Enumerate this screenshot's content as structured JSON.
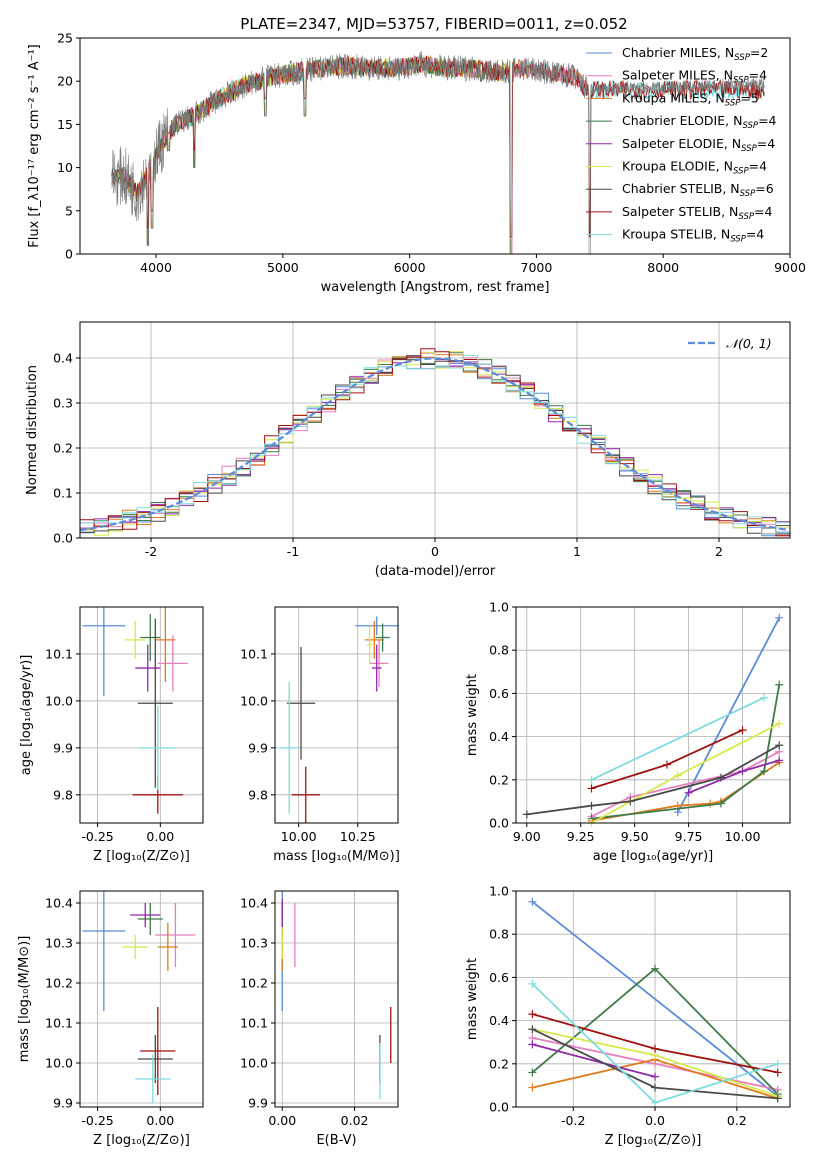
{
  "figure_title": "PLATE=2347, MJD=53757, FIBERID=0011, z=0.052",
  "colors": {
    "chabrier_miles": "#5b8bd9",
    "salpeter_miles": "#e87fbf",
    "kroupa_miles": "#e07b20",
    "chabrier_elodie": "#3f7a48",
    "salpeter_elodie": "#8e2aa8",
    "kroupa_elodie": "#d8e84a",
    "chabrier_stelib": "#4a4a4a",
    "salpeter_stelib": "#a01010",
    "kroupa_stelib": "#80dcdc",
    "normal_curve": "#5b8bd9"
  },
  "chart_data": [
    {
      "id": "spectrum",
      "type": "line",
      "title": "PLATE=2347, MJD=53757, FIBERID=0011, z=0.052",
      "xlabel": "wavelength [Angstrom, rest frame]",
      "ylabel": "Flux [f_λ10⁻¹⁷ erg cm⁻² s⁻¹ A⁻¹]",
      "xlim": [
        3400,
        9000
      ],
      "ylim": [
        0,
        25
      ],
      "xticks": [
        4000,
        5000,
        6000,
        7000,
        8000,
        9000
      ],
      "yticks": [
        0,
        5,
        10,
        15,
        20,
        25
      ],
      "grid": false,
      "legend_position": "upper right",
      "legend": [
        {
          "label": "Chabrier MILES, N",
          "sub": "SSP",
          "suffix": "=2",
          "color": "#5b8bd9"
        },
        {
          "label": "Salpeter MILES, N",
          "sub": "SSP",
          "suffix": "=4",
          "color": "#e87fbf"
        },
        {
          "label": "Kroupa MILES, N",
          "sub": "SSP",
          "suffix": "=5",
          "color": "#e07b20"
        },
        {
          "label": "Chabrier ELODIE, N",
          "sub": "SSP",
          "suffix": "=4",
          "color": "#3f7a48"
        },
        {
          "label": "Salpeter ELODIE, N",
          "sub": "SSP",
          "suffix": "=4",
          "color": "#8e2aa8"
        },
        {
          "label": "Kroupa ELODIE, N",
          "sub": "SSP",
          "suffix": "=4",
          "color": "#d8e84a"
        },
        {
          "label": "Chabrier STELIB, N",
          "sub": "SSP",
          "suffix": "=6",
          "color": "#4a4a4a"
        },
        {
          "label": "Salpeter STELIB, N",
          "sub": "SSP",
          "suffix": "=4",
          "color": "#a01010"
        },
        {
          "label": "Kroupa STELIB, N",
          "sub": "SSP",
          "suffix": "=4",
          "color": "#80dcdc"
        }
      ],
      "data_trend": {
        "x": [
          3650,
          3750,
          3850,
          3950,
          4050,
          4150,
          4300,
          4500,
          4700,
          4900,
          5100,
          5300,
          5500,
          5700,
          5900,
          6100,
          6300,
          6500,
          6700,
          6900,
          7100,
          7300,
          7400
        ],
        "y": [
          9,
          9,
          7,
          10,
          13,
          15,
          16,
          18,
          19.5,
          20.5,
          21,
          21.5,
          21.8,
          21.5,
          21.5,
          22,
          21.5,
          21.5,
          21,
          21.5,
          21,
          20.5,
          19
        ]
      },
      "data_x_range": [
        3650,
        8800
      ],
      "model_x_ranges": {
        "miles": [
          3650,
          7400
        ],
        "elodie": [
          3650,
          6800
        ],
        "stelib": [
          3650,
          8800
        ]
      },
      "spectral_dips": [
        {
          "x": 3934,
          "y": 1
        },
        {
          "x": 3969,
          "y": 3
        },
        {
          "x": 4101,
          "y": 12
        },
        {
          "x": 4300,
          "y": 10
        },
        {
          "x": 4861,
          "y": 16
        },
        {
          "x": 5175,
          "y": 16
        },
        {
          "x": 6563,
          "y": 20
        },
        {
          "x": 6800,
          "y": 0
        },
        {
          "x": 7420,
          "y": 0
        }
      ]
    },
    {
      "id": "residual_hist",
      "type": "line",
      "xlabel": "(data-model)/error",
      "ylabel": "Normed distribution",
      "xlim": [
        -2.5,
        2.5
      ],
      "ylim": [
        0,
        0.48
      ],
      "xticks": [
        -2,
        -1,
        0,
        1,
        2
      ],
      "yticks": [
        0.0,
        0.1,
        0.2,
        0.3,
        0.4
      ],
      "grid": true,
      "legend_position": "upper right",
      "legend": [
        {
          "label": "𝒩(0, 1)",
          "color": "#5b8bd9",
          "style": "dashed"
        }
      ],
      "bin_width": 0.1
    },
    {
      "id": "age_vs_Z",
      "type": "scatter",
      "xlabel": "Z [log₁₀(Z/Z⊙)]",
      "ylabel": "age  [log₁₀(age/yr)]",
      "xlim": [
        -0.32,
        0.17
      ],
      "ylim": [
        9.74,
        10.2
      ],
      "xticks": [
        -0.25,
        0.0
      ],
      "yticks": [
        9.8,
        9.9,
        10.0,
        10.1
      ],
      "grid": true,
      "points": [
        {
          "model": "Chabrier MILES",
          "x": -0.225,
          "y": 10.16,
          "xerr": 0.085,
          "yerr": 0.15,
          "color": "#5b8bd9"
        },
        {
          "model": "Salpeter MILES",
          "x": 0.05,
          "y": 10.08,
          "xerr": 0.06,
          "yerr": 0.06,
          "color": "#e87fbf"
        },
        {
          "model": "Kroupa MILES",
          "x": 0.02,
          "y": 10.13,
          "xerr": 0.04,
          "yerr": 0.09,
          "color": "#e07b20"
        },
        {
          "model": "Chabrier ELODIE",
          "x": -0.04,
          "y": 10.135,
          "xerr": 0.04,
          "yerr": 0.05,
          "color": "#3f7a48"
        },
        {
          "model": "Salpeter ELODIE",
          "x": -0.05,
          "y": 10.07,
          "xerr": 0.05,
          "yerr": 0.05,
          "color": "#8e2aa8"
        },
        {
          "model": "Kroupa ELODIE",
          "x": -0.1,
          "y": 10.13,
          "xerr": 0.04,
          "yerr": 0.04,
          "color": "#d8e84a"
        },
        {
          "model": "Chabrier STELIB",
          "x": -0.02,
          "y": 9.995,
          "xerr": 0.07,
          "yerr": 0.18,
          "color": "#4a4a4a"
        },
        {
          "model": "Salpeter STELIB",
          "x": -0.01,
          "y": 9.8,
          "xerr": 0.1,
          "yerr": 0.04,
          "color": "#a01010"
        },
        {
          "model": "Kroupa STELIB",
          "x": -0.01,
          "y": 9.9,
          "xerr": 0.07,
          "yerr": 0.09,
          "color": "#80dcdc"
        }
      ]
    },
    {
      "id": "age_vs_mass",
      "type": "scatter",
      "xlabel": "mass [log₁₀(M/M⊙)]",
      "ylabel": "",
      "xlim": [
        9.9,
        10.42
      ],
      "ylim": [
        9.74,
        10.2
      ],
      "xticks": [
        10.0,
        10.25
      ],
      "yticks": [
        9.8,
        9.9,
        10.0,
        10.1
      ],
      "grid": true,
      "points": [
        {
          "model": "Chabrier MILES",
          "x": 10.33,
          "y": 10.16,
          "xerr": 0.09,
          "yerr": 0.02,
          "color": "#5b8bd9"
        },
        {
          "model": "Salpeter MILES",
          "x": 10.34,
          "y": 10.08,
          "xerr": 0.04,
          "yerr": 0.05,
          "color": "#e87fbf"
        },
        {
          "model": "Kroupa MILES",
          "x": 10.32,
          "y": 10.13,
          "xerr": 0.04,
          "yerr": 0.04,
          "color": "#e07b20"
        },
        {
          "model": "Chabrier ELODIE",
          "x": 10.355,
          "y": 10.135,
          "xerr": 0.03,
          "yerr": 0.03,
          "color": "#3f7a48"
        },
        {
          "model": "Salpeter ELODIE",
          "x": 10.33,
          "y": 10.07,
          "xerr": 0.02,
          "yerr": 0.05,
          "color": "#8e2aa8"
        },
        {
          "model": "Kroupa ELODIE",
          "x": 10.3,
          "y": 10.12,
          "xerr": 0.01,
          "yerr": 0.04,
          "color": "#d8e84a"
        },
        {
          "model": "Chabrier STELIB",
          "x": 10.01,
          "y": 9.995,
          "xerr": 0.06,
          "yerr": 0.12,
          "color": "#4a4a4a"
        },
        {
          "model": "Salpeter STELIB",
          "x": 10.03,
          "y": 9.8,
          "xerr": 0.06,
          "yerr": 0.06,
          "color": "#a01010"
        },
        {
          "model": "Kroupa STELIB",
          "x": 9.96,
          "y": 9.9,
          "xerr": 0.04,
          "yerr": 0.14,
          "color": "#80dcdc"
        }
      ]
    },
    {
      "id": "mass_weight_vs_age",
      "type": "line",
      "xlabel": "age  [log₁₀(age/yr)]",
      "ylabel": "mass weight",
      "xlim": [
        8.95,
        10.22
      ],
      "ylim": [
        0,
        1.0
      ],
      "xticks": [
        9.0,
        9.25,
        9.5,
        9.75,
        10.0
      ],
      "yticks": [
        0.0,
        0.2,
        0.4,
        0.6,
        0.8,
        1.0
      ],
      "grid": true,
      "series": [
        {
          "name": "Chabrier MILES",
          "color": "#5b8bd9",
          "x": [
            9.7,
            10.17
          ],
          "y": [
            0.05,
            0.95
          ]
        },
        {
          "name": "Salpeter MILES",
          "color": "#e87fbf",
          "x": [
            9.3,
            9.48,
            10.0,
            10.17
          ],
          "y": [
            0.03,
            0.12,
            0.24,
            0.33
          ]
        },
        {
          "name": "Kroupa MILES",
          "color": "#e07b20",
          "x": [
            9.3,
            9.7,
            9.85,
            9.9,
            10.17
          ],
          "y": [
            0.01,
            0.08,
            0.09,
            0.1,
            0.28
          ]
        },
        {
          "name": "Chabrier ELODIE",
          "color": "#3f7a48",
          "x": [
            9.3,
            9.9,
            10.1,
            10.17
          ],
          "y": [
            0.02,
            0.09,
            0.24,
            0.64
          ]
        },
        {
          "name": "Salpeter ELODIE",
          "color": "#8e2aa8",
          "x": [
            9.75,
            10.0,
            10.17
          ],
          "y": [
            0.14,
            0.24,
            0.29
          ]
        },
        {
          "name": "Kroupa ELODIE",
          "color": "#d8e84a",
          "x": [
            9.3,
            9.7,
            10.17
          ],
          "y": [
            0.0,
            0.22,
            0.46
          ]
        },
        {
          "name": "Chabrier STELIB",
          "color": "#4a4a4a",
          "x": [
            9.0,
            9.3,
            9.48,
            9.9,
            10.17
          ],
          "y": [
            0.04,
            0.08,
            0.1,
            0.21,
            0.36
          ]
        },
        {
          "name": "Salpeter STELIB",
          "color": "#a01010",
          "x": [
            9.3,
            9.65,
            10.0
          ],
          "y": [
            0.16,
            0.27,
            0.43
          ]
        },
        {
          "name": "Kroupa STELIB",
          "color": "#80dcdc",
          "x": [
            9.3,
            10.1
          ],
          "y": [
            0.2,
            0.58
          ]
        }
      ]
    },
    {
      "id": "mass_vs_Z",
      "type": "scatter",
      "xlabel": "Z [log₁₀(Z/Z⊙)]",
      "ylabel": "mass [log₁₀(M/M⊙)]",
      "xlim": [
        -0.32,
        0.17
      ],
      "ylim": [
        9.89,
        10.43
      ],
      "xticks": [
        -0.25,
        0.0
      ],
      "yticks": [
        9.9,
        10.0,
        10.1,
        10.2,
        10.3,
        10.4
      ],
      "grid": true,
      "points": [
        {
          "model": "Chabrier MILES",
          "x": -0.225,
          "y": 10.33,
          "xerr": 0.085,
          "yerr": 0.2,
          "color": "#5b8bd9"
        },
        {
          "model": "Salpeter MILES",
          "x": 0.06,
          "y": 10.32,
          "xerr": 0.08,
          "yerr": 0.08,
          "color": "#e87fbf"
        },
        {
          "model": "Kroupa MILES",
          "x": 0.03,
          "y": 10.29,
          "xerr": 0.04,
          "yerr": 0.06,
          "color": "#e07b20"
        },
        {
          "model": "Chabrier ELODIE",
          "x": -0.04,
          "y": 10.36,
          "xerr": 0.05,
          "yerr": 0.04,
          "color": "#3f7a48"
        },
        {
          "model": "Salpeter ELODIE",
          "x": -0.06,
          "y": 10.37,
          "xerr": 0.06,
          "yerr": 0.03,
          "color": "#8e2aa8"
        },
        {
          "model": "Kroupa ELODIE",
          "x": -0.1,
          "y": 10.29,
          "xerr": 0.05,
          "yerr": 0.03,
          "color": "#d8e84a"
        },
        {
          "model": "Chabrier STELIB",
          "x": -0.02,
          "y": 10.01,
          "xerr": 0.07,
          "yerr": 0.06,
          "color": "#4a4a4a"
        },
        {
          "model": "Salpeter STELIB",
          "x": -0.01,
          "y": 10.03,
          "xerr": 0.07,
          "yerr": 0.11,
          "color": "#a01010"
        },
        {
          "model": "Kroupa STELIB",
          "x": -0.03,
          "y": 9.96,
          "xerr": 0.07,
          "yerr": 0.06,
          "color": "#80dcdc"
        }
      ]
    },
    {
      "id": "mass_vs_ebv",
      "type": "scatter",
      "xlabel": "E(B-V)",
      "ylabel": "",
      "xlim": [
        -0.002,
        0.032
      ],
      "ylim": [
        9.89,
        10.43
      ],
      "xticks": [
        0.0,
        0.02
      ],
      "yticks": [
        9.9,
        10.0,
        10.1,
        10.2,
        10.3,
        10.4
      ],
      "grid": true,
      "points": [
        {
          "model": "Chabrier MILES",
          "x": 0.0,
          "y": 10.33,
          "xerr": 0,
          "yerr": 0.2,
          "color": "#5b8bd9"
        },
        {
          "model": "Salpeter MILES",
          "x": 0.0035,
          "y": 10.32,
          "xerr": 0,
          "yerr": 0.08,
          "color": "#e87fbf"
        },
        {
          "model": "Kroupa MILES",
          "x": 0.0,
          "y": 10.29,
          "xerr": 0,
          "yerr": 0.06,
          "color": "#e07b20"
        },
        {
          "model": "Chabrier ELODIE",
          "x": 0.0,
          "y": 10.36,
          "xerr": 0,
          "yerr": 0.04,
          "color": "#3f7a48"
        },
        {
          "model": "Salpeter ELODIE",
          "x": 0.0,
          "y": 10.37,
          "xerr": 0,
          "yerr": 0.04,
          "color": "#8e2aa8"
        },
        {
          "model": "Kroupa ELODIE",
          "x": 0.0,
          "y": 10.3,
          "xerr": 0,
          "yerr": 0.04,
          "color": "#d8e84a"
        },
        {
          "model": "Chabrier STELIB",
          "x": 0.027,
          "y": 10.01,
          "xerr": 0,
          "yerr": 0.06,
          "color": "#4a4a4a"
        },
        {
          "model": "Salpeter STELIB",
          "x": 0.03,
          "y": 10.07,
          "xerr": 0,
          "yerr": 0.07,
          "color": "#a01010"
        },
        {
          "model": "Kroupa STELIB",
          "x": 0.027,
          "y": 9.98,
          "xerr": 0,
          "yerr": 0.07,
          "color": "#80dcdc"
        }
      ]
    },
    {
      "id": "mass_weight_vs_Z",
      "type": "line",
      "xlabel": "Z [log₁₀(Z/Z⊙)]",
      "ylabel": "mass weight",
      "xlim": [
        -0.34,
        0.33
      ],
      "ylim": [
        0,
        1.0
      ],
      "xticks": [
        -0.2,
        0.0,
        0.2
      ],
      "yticks": [
        0.0,
        0.2,
        0.4,
        0.6,
        0.8,
        1.0
      ],
      "grid": true,
      "series": [
        {
          "name": "Chabrier MILES",
          "color": "#5b8bd9",
          "x": [
            -0.3,
            0.3
          ],
          "y": [
            0.95,
            0.05
          ]
        },
        {
          "name": "Salpeter MILES",
          "color": "#e87fbf",
          "x": [
            -0.3,
            0.0,
            0.3
          ],
          "y": [
            0.32,
            0.2,
            0.08
          ]
        },
        {
          "name": "Kroupa MILES",
          "color": "#e07b20",
          "x": [
            -0.3,
            0.0,
            0.3
          ],
          "y": [
            0.09,
            0.22,
            0.04
          ]
        },
        {
          "name": "Chabrier ELODIE",
          "color": "#3f7a48",
          "x": [
            -0.3,
            0.0,
            0.3
          ],
          "y": [
            0.16,
            0.64,
            0.06
          ]
        },
        {
          "name": "Salpeter ELODIE",
          "color": "#8e2aa8",
          "x": [
            -0.3,
            0.0
          ],
          "y": [
            0.29,
            0.14
          ]
        },
        {
          "name": "Kroupa ELODIE",
          "color": "#d8e84a",
          "x": [
            -0.3,
            0.0,
            0.3
          ],
          "y": [
            0.36,
            0.24,
            0.05
          ]
        },
        {
          "name": "Chabrier STELIB",
          "color": "#4a4a4a",
          "x": [
            -0.3,
            0.0,
            0.3
          ],
          "y": [
            0.36,
            0.09,
            0.04
          ]
        },
        {
          "name": "Salpeter STELIB",
          "color": "#a01010",
          "x": [
            -0.3,
            0.0,
            0.3
          ],
          "y": [
            0.43,
            0.27,
            0.16
          ]
        },
        {
          "name": "Kroupa STELIB",
          "color": "#80dcdc",
          "x": [
            -0.3,
            0.0,
            0.3
          ],
          "y": [
            0.57,
            0.02,
            0.2
          ]
        }
      ]
    }
  ]
}
